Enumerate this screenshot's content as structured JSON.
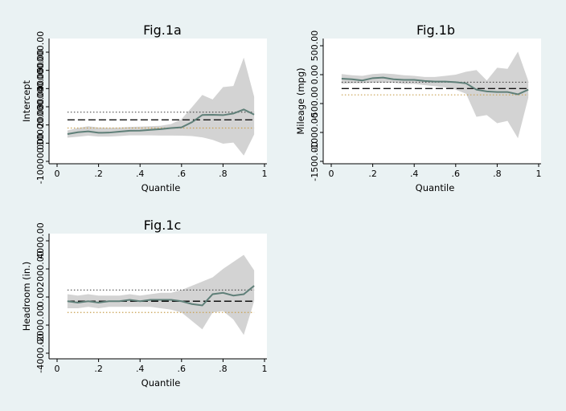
{
  "figure": {
    "background": "#eaf2f3",
    "plot_background": "#ffffff",
    "colors": {
      "band_fill": "#d3d3d3",
      "quantile_line": "#5f7f78",
      "ols_line": "#111111",
      "ci_line_dark": "#333333",
      "ci_line_orange": "#c8a050"
    }
  },
  "chart_data": [
    {
      "id": "fig1a",
      "type": "line",
      "title": "Fig.1a",
      "xlabel": "Quantile",
      "ylabel": "Intercept",
      "xlim": [
        0,
        1
      ],
      "xticks": [
        0,
        0.2,
        0.4,
        0.6,
        0.8,
        1
      ],
      "xtick_labels": [
        "0",
        ".2",
        ".4",
        ".6",
        ".8",
        "1"
      ],
      "ylim": [
        -10000,
        50000
      ],
      "yticks": [
        -10000,
        0,
        10000,
        20000,
        30000,
        40000,
        50000
      ],
      "ytick_labels": [
        "-10000.00",
        "0.00",
        "10000.00",
        "20000.00",
        "30000.00",
        "40000.00",
        "50000.00"
      ],
      "grid": false,
      "series": [
        {
          "role": "quantile_estimate",
          "x": [
            0.05,
            0.1,
            0.15,
            0.2,
            0.25,
            0.3,
            0.35,
            0.4,
            0.45,
            0.5,
            0.55,
            0.6,
            0.65,
            0.7,
            0.75,
            0.8,
            0.85,
            0.9,
            0.95
          ],
          "y": [
            5000,
            6000,
            6500,
            5700,
            5800,
            6300,
            6800,
            6900,
            7300,
            7700,
            8300,
            8700,
            11500,
            15500,
            15600,
            15400,
            16300,
            18500,
            15700
          ],
          "lower": [
            3000,
            3500,
            4100,
            3600,
            3600,
            3900,
            4300,
            4300,
            4300,
            4200,
            4200,
            4100,
            3900,
            3200,
            1800,
            -300,
            300,
            -6800,
            4800
          ],
          "upper": [
            7000,
            8300,
            9300,
            8600,
            8500,
            8600,
            8900,
            9100,
            9300,
            9600,
            10500,
            13200,
            19700,
            26500,
            24000,
            30800,
            31400,
            47000,
            25500
          ]
        },
        {
          "role": "ols_estimate",
          "value": 12800
        },
        {
          "role": "ols_ci_upper",
          "value": 17000
        },
        {
          "role": "ols_ci_lower",
          "value": 8300
        }
      ]
    },
    {
      "id": "fig1b",
      "type": "line",
      "title": "Fig.1b",
      "xlabel": "Quantile",
      "ylabel": "Mileage (mpg)",
      "xlim": [
        0,
        1
      ],
      "xticks": [
        0,
        0.2,
        0.4,
        0.6,
        0.8,
        1
      ],
      "xtick_labels": [
        "0",
        ".2",
        ".4",
        ".6",
        ".8",
        "1"
      ],
      "ylim": [
        -1500,
        500
      ],
      "yticks": [
        -1500,
        -1000,
        -500,
        0,
        500
      ],
      "ytick_labels": [
        "-1500.00",
        "-1000.00",
        "-500.00",
        "0.00",
        "500.00"
      ],
      "grid": false,
      "series": [
        {
          "role": "quantile_estimate",
          "x": [
            0.05,
            0.1,
            0.15,
            0.2,
            0.25,
            0.3,
            0.35,
            0.4,
            0.45,
            0.5,
            0.55,
            0.6,
            0.65,
            0.7,
            0.75,
            0.8,
            0.85,
            0.9,
            0.95
          ],
          "y": [
            -70,
            -80,
            -100,
            -60,
            -50,
            -80,
            -90,
            -90,
            -110,
            -120,
            -120,
            -130,
            -150,
            -260,
            -290,
            -300,
            -300,
            -340,
            -260
          ],
          "lower": [
            -160,
            -150,
            -150,
            -140,
            -140,
            -140,
            -160,
            -160,
            -180,
            -200,
            -220,
            -260,
            -330,
            -730,
            -700,
            -840,
            -800,
            -1100,
            -400
          ],
          "upper": [
            10,
            -10,
            -20,
            10,
            20,
            10,
            -10,
            -20,
            -40,
            -40,
            -20,
            0,
            50,
            80,
            -100,
            120,
            100,
            400,
            -110
          ]
        },
        {
          "role": "ols_estimate",
          "value": -240
        },
        {
          "role": "ols_ci_upper",
          "value": -130
        },
        {
          "role": "ols_ci_lower",
          "value": -350
        }
      ]
    },
    {
      "id": "fig1c",
      "type": "line",
      "title": "Fig.1c",
      "xlabel": "Quantile",
      "ylabel": "Headroom (in.)",
      "xlim": [
        0,
        1
      ],
      "xticks": [
        0,
        0.2,
        0.4,
        0.6,
        0.8,
        1
      ],
      "xtick_labels": [
        "0",
        ".2",
        ".4",
        ".6",
        ".8",
        "1"
      ],
      "ylim": [
        -4000,
        4000
      ],
      "yticks": [
        -4000,
        -2000,
        0,
        2000,
        4000
      ],
      "ytick_labels": [
        "-4000.00",
        "-2000.00",
        "0.00",
        "2000.00",
        "4000.00"
      ],
      "grid": false,
      "series": [
        {
          "role": "quantile_estimate",
          "x": [
            0.05,
            0.1,
            0.15,
            0.2,
            0.25,
            0.3,
            0.35,
            0.4,
            0.45,
            0.5,
            0.55,
            0.6,
            0.65,
            0.7,
            0.75,
            0.8,
            0.85,
            0.9,
            0.95
          ],
          "y": [
            -300,
            -400,
            -300,
            -400,
            -300,
            -300,
            -200,
            -300,
            -200,
            -200,
            -200,
            -300,
            -500,
            -600,
            200,
            300,
            100,
            200,
            800
          ],
          "lower": [
            -800,
            -800,
            -700,
            -800,
            -700,
            -700,
            -700,
            -700,
            -700,
            -800,
            -900,
            -1100,
            -1700,
            -2300,
            -1100,
            -1000,
            -1600,
            -2700,
            -300
          ],
          "upper": [
            200,
            100,
            200,
            100,
            100,
            100,
            200,
            100,
            200,
            300,
            300,
            500,
            800,
            1100,
            1400,
            2000,
            2500,
            3000,
            1900
          ]
        },
        {
          "role": "ols_estimate",
          "value": -300
        },
        {
          "role": "ols_ci_upper",
          "value": 500
        },
        {
          "role": "ols_ci_lower",
          "value": -1100
        }
      ]
    }
  ]
}
